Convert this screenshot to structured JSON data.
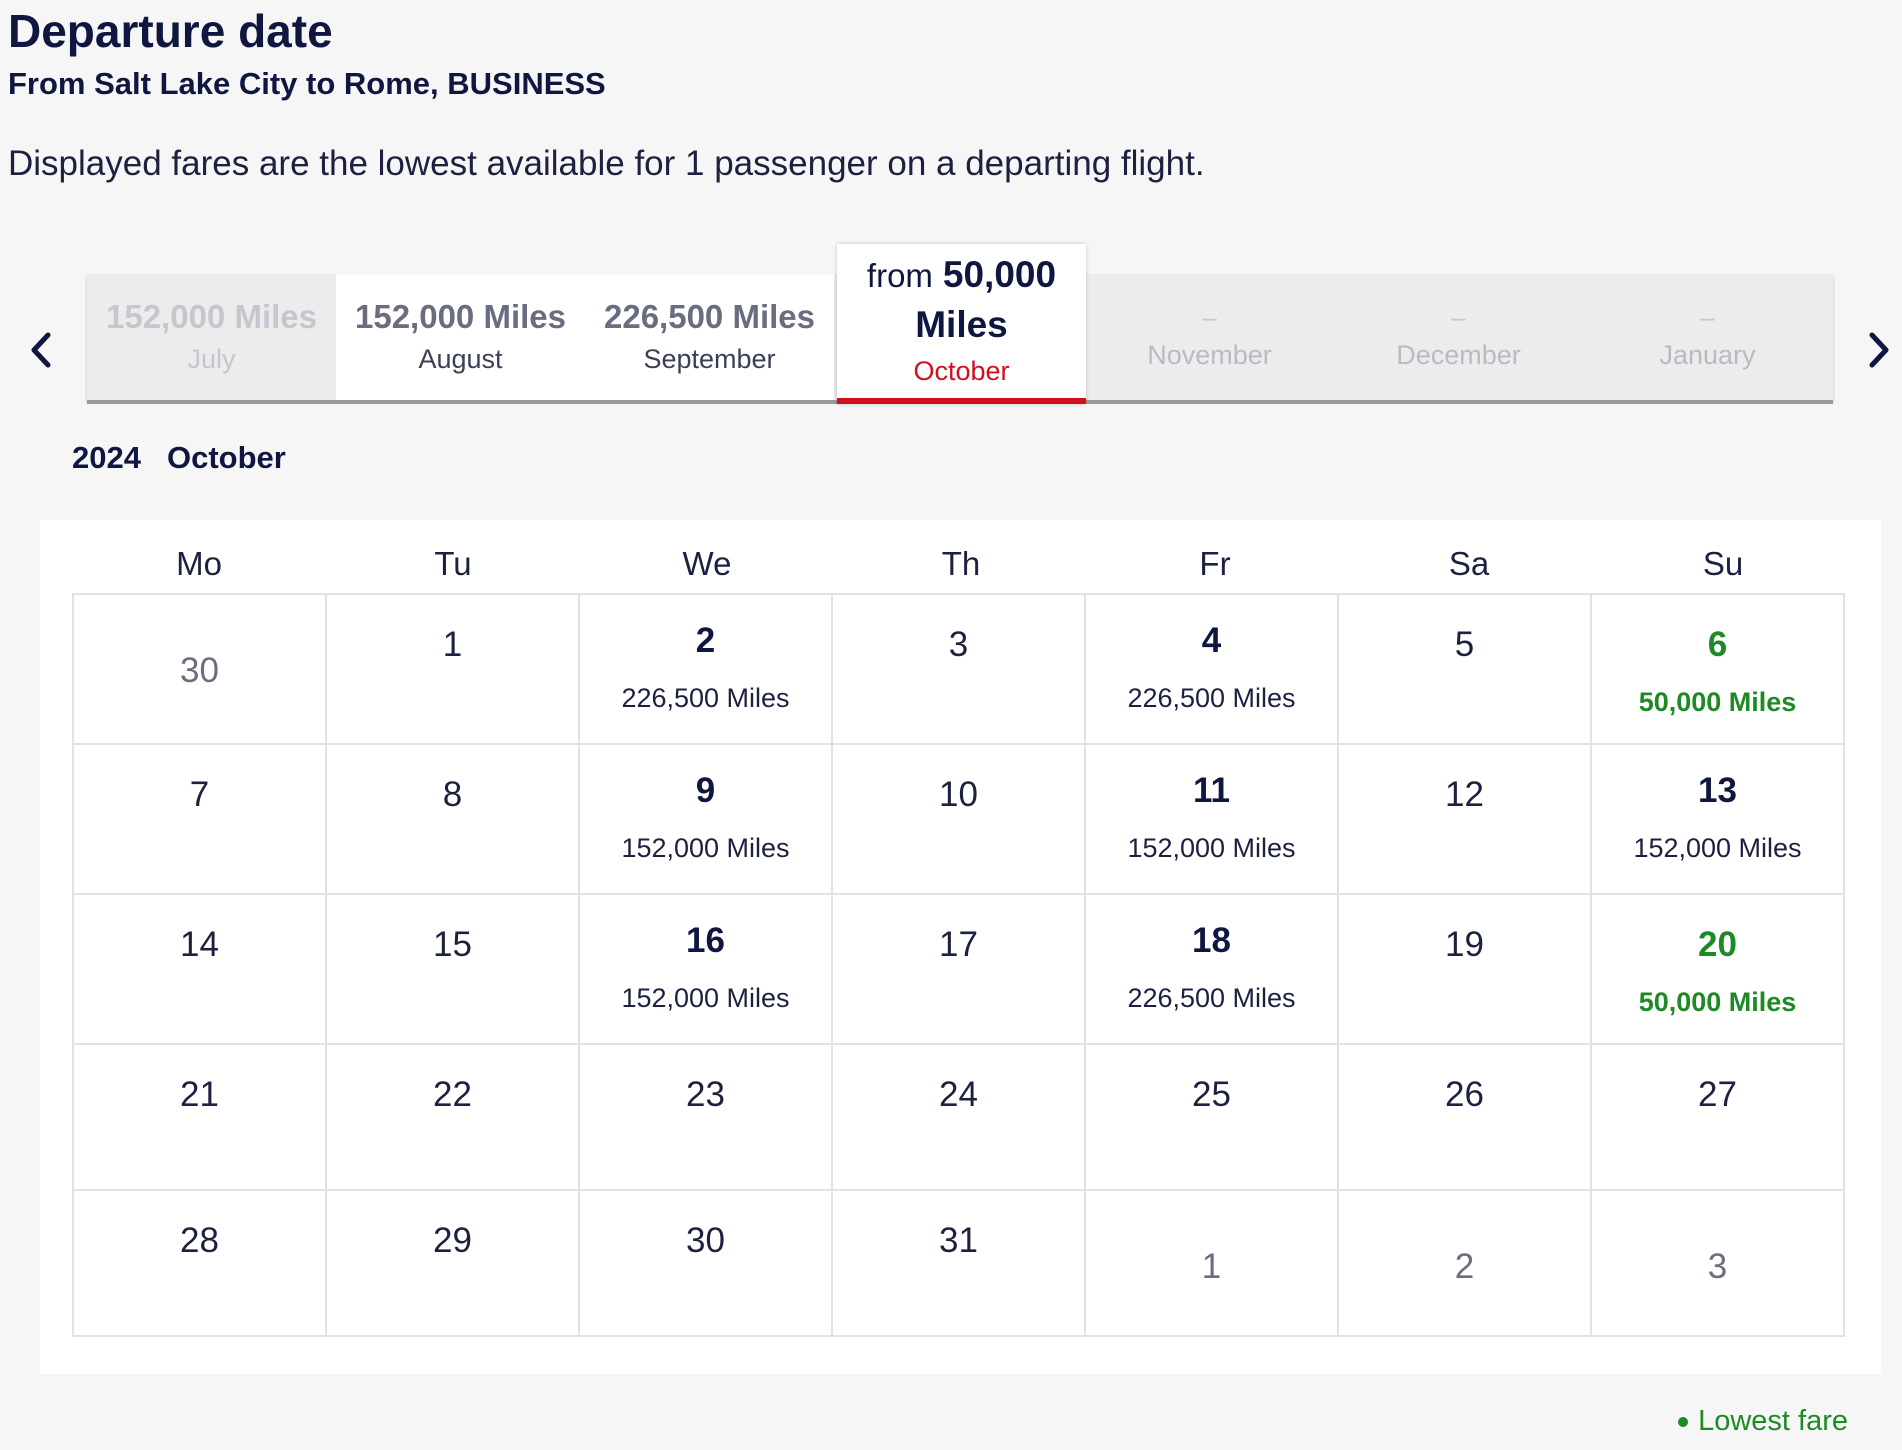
{
  "header": {
    "title": "Departure date",
    "subtitle": "From Salt Lake City to Rome, BUSINESS",
    "description": "Displayed fares are the lowest available for 1 passenger on a departing flight."
  },
  "months": [
    {
      "miles": "152,000 Miles",
      "name": "July",
      "state": "muted"
    },
    {
      "miles": "152,000 Miles",
      "name": "August",
      "state": "available"
    },
    {
      "miles": "226,500 Miles",
      "name": "September",
      "state": "available"
    },
    {
      "from_label": "from",
      "miles_value": "50,000",
      "miles_unit": "Miles",
      "name": "October",
      "state": "selected"
    },
    {
      "miles": "–",
      "name": "November",
      "state": "unavailable"
    },
    {
      "miles": "–",
      "name": "December",
      "state": "unavailable"
    },
    {
      "miles": "–",
      "name": "January",
      "state": "unavailable"
    }
  ],
  "calendar": {
    "year": "2024",
    "month": "October",
    "weekdays": [
      "Mo",
      "Tu",
      "We",
      "Th",
      "Fr",
      "Sa",
      "Su"
    ],
    "days": [
      {
        "day": "30",
        "type": "other"
      },
      {
        "day": "1",
        "type": "plain"
      },
      {
        "day": "2",
        "type": "fare",
        "price": "226,500 Miles"
      },
      {
        "day": "3",
        "type": "plain"
      },
      {
        "day": "4",
        "type": "fare",
        "price": "226,500 Miles"
      },
      {
        "day": "5",
        "type": "plain"
      },
      {
        "day": "6",
        "type": "lowest",
        "price": "50,000 Miles"
      },
      {
        "day": "7",
        "type": "plain"
      },
      {
        "day": "8",
        "type": "plain"
      },
      {
        "day": "9",
        "type": "fare",
        "price": "152,000 Miles"
      },
      {
        "day": "10",
        "type": "plain"
      },
      {
        "day": "11",
        "type": "fare",
        "price": "152,000 Miles"
      },
      {
        "day": "12",
        "type": "plain"
      },
      {
        "day": "13",
        "type": "fare",
        "price": "152,000 Miles"
      },
      {
        "day": "14",
        "type": "plain"
      },
      {
        "day": "15",
        "type": "plain"
      },
      {
        "day": "16",
        "type": "fare",
        "price": "152,000 Miles"
      },
      {
        "day": "17",
        "type": "plain"
      },
      {
        "day": "18",
        "type": "fare",
        "price": "226,500 Miles"
      },
      {
        "day": "19",
        "type": "plain"
      },
      {
        "day": "20",
        "type": "lowest",
        "price": "50,000 Miles"
      },
      {
        "day": "21",
        "type": "plain"
      },
      {
        "day": "22",
        "type": "plain"
      },
      {
        "day": "23",
        "type": "plain"
      },
      {
        "day": "24",
        "type": "plain"
      },
      {
        "day": "25",
        "type": "plain"
      },
      {
        "day": "26",
        "type": "plain"
      },
      {
        "day": "27",
        "type": "plain"
      },
      {
        "day": "28",
        "type": "plain"
      },
      {
        "day": "29",
        "type": "plain"
      },
      {
        "day": "30",
        "type": "plain"
      },
      {
        "day": "31",
        "type": "plain"
      },
      {
        "day": "1",
        "type": "other"
      },
      {
        "day": "2",
        "type": "other"
      },
      {
        "day": "3",
        "type": "other"
      }
    ]
  },
  "legend": {
    "lowest_fare": "Lowest fare"
  },
  "icons": {
    "prev": "chevron-left-icon",
    "next": "chevron-right-icon"
  },
  "colors": {
    "navy": "#0f1740",
    "selected_red": "#d20f1f",
    "lowest_green": "#1d8a25"
  }
}
